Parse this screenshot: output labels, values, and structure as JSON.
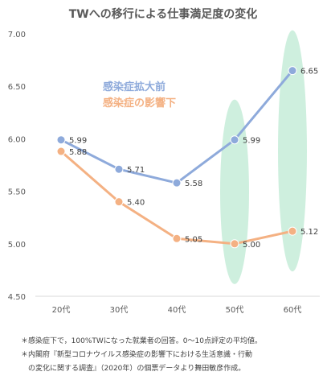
{
  "chart_data": {
    "type": "line",
    "title": "TWへの移行による仕事満足度の変化",
    "categories": [
      "20代",
      "30代",
      "40代",
      "50代",
      "60代"
    ],
    "ylim": [
      4.5,
      7.0
    ],
    "yticks": [
      "4.50",
      "5.00",
      "5.50",
      "6.00",
      "6.50",
      "7.00"
    ],
    "grid": false,
    "legend_placement": "inside-top-left",
    "series": [
      {
        "name": "感染症拡大前",
        "values": [
          5.99,
          5.71,
          5.58,
          5.99,
          6.65
        ],
        "labels": [
          "5.99",
          "5.71",
          "5.58",
          "5.99",
          "6.65"
        ],
        "color": "#8eaadb"
      },
      {
        "name": "感染症の影響下",
        "values": [
          5.88,
          5.4,
          5.05,
          5.0,
          5.12
        ],
        "labels": [
          "5.88",
          "5.40",
          "5.05",
          "5.00",
          "5.12"
        ],
        "color": "#f4b183"
      }
    ],
    "highlight_categories": [
      "50代",
      "60代"
    ],
    "highlight_color": "#c6ecd8"
  },
  "notes": [
    "＊感染症下で，100%TWになった就業者の回答。0〜10点評定の平均値。",
    "＊内閣府『新型コロナウイルス感染症の影響下における生活意識・行動",
    "　の変化に関する調査』（2020年）の個票データより舞田敏彦作成。"
  ]
}
